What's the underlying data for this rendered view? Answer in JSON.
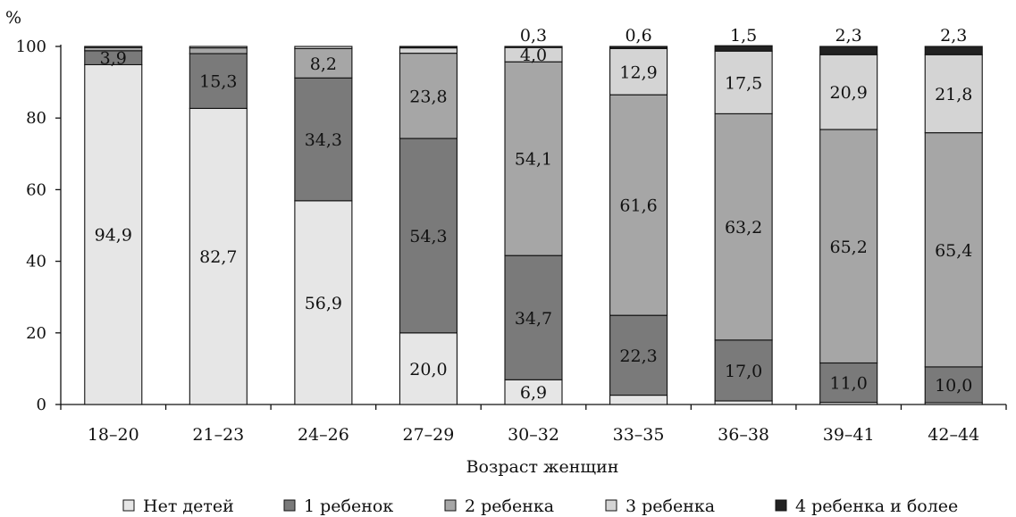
{
  "chart_data": {
    "type": "bar",
    "stacked": true,
    "xlabel": "Возраст женщин",
    "ylabel": "%",
    "ylim": [
      0,
      100
    ],
    "yticks": [
      0,
      20,
      40,
      60,
      80,
      100
    ],
    "grid": false,
    "legend_position": "bottom",
    "categories": [
      "18–20",
      "21–23",
      "24–26",
      "27–29",
      "30–32",
      "33–35",
      "36–38",
      "39–41",
      "42–44"
    ],
    "series": [
      {
        "name": "Нет детей",
        "color": "#e6e6e6",
        "values": [
          94.9,
          82.7,
          56.9,
          20.0,
          6.9,
          2.6,
          1.0,
          0.6,
          0.5
        ],
        "labels": [
          "94,9",
          "82,7",
          "56,9",
          "20,0",
          "6,9",
          "",
          "",
          "",
          ""
        ]
      },
      {
        "name": "1 ребенок",
        "color": "#7a7a7a",
        "values": [
          3.9,
          15.3,
          34.3,
          54.3,
          34.7,
          22.3,
          17.0,
          11.0,
          10.0
        ],
        "labels": [
          "3,9",
          "15,3",
          "34,3",
          "54,3",
          "34,7",
          "22,3",
          "17,0",
          "11,0",
          "10,0"
        ]
      },
      {
        "name": "2 ребенка",
        "color": "#a6a6a6",
        "values": [
          0.9,
          1.6,
          8.2,
          23.8,
          54.1,
          61.6,
          63.2,
          65.2,
          65.4
        ],
        "labels": [
          "",
          "",
          "8,2",
          "23,8",
          "54,1",
          "61,6",
          "63,2",
          "65,2",
          "65,4"
        ]
      },
      {
        "name": "3 ребенка",
        "color": "#d4d4d4",
        "values": [
          0.3,
          0.4,
          0.6,
          1.5,
          4.0,
          12.9,
          17.5,
          20.9,
          21.8
        ],
        "labels": [
          "",
          "",
          "",
          "",
          "4,0",
          "12,9",
          "17,5",
          "20,9",
          "21,8"
        ]
      },
      {
        "name": "4 ребенка и более",
        "color": "#222222",
        "values": [
          0.0,
          0.0,
          0.0,
          0.4,
          0.3,
          0.6,
          1.5,
          2.3,
          2.3
        ],
        "labels": [
          "",
          "",
          "",
          "",
          "0,3",
          "0,6",
          "1,5",
          "2,3",
          "2,3"
        ]
      }
    ]
  }
}
